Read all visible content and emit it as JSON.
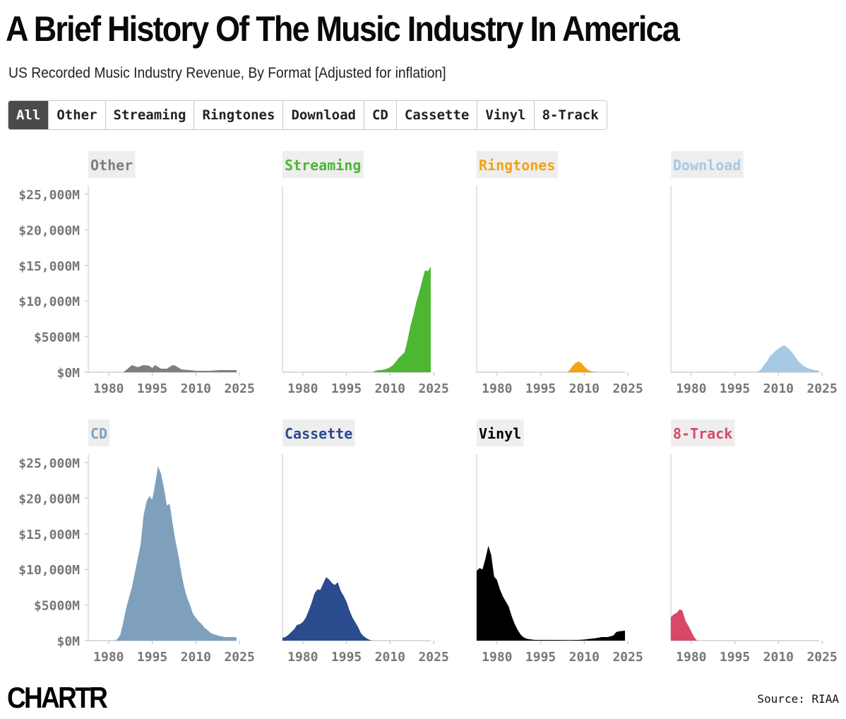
{
  "title": "A Brief History Of The Music Industry In America",
  "subtitle": "US Recorded Music Industry Revenue, By Format [Adjusted for inflation]",
  "tabs": [
    {
      "label": "All",
      "active": true
    },
    {
      "label": "Other",
      "active": false
    },
    {
      "label": "Streaming",
      "active": false
    },
    {
      "label": "Ringtones",
      "active": false
    },
    {
      "label": "Download",
      "active": false
    },
    {
      "label": "CD",
      "active": false
    },
    {
      "label": "Cassette",
      "active": false
    },
    {
      "label": "Vinyl",
      "active": false
    },
    {
      "label": "8-Track",
      "active": false
    }
  ],
  "logo": "CHARTR",
  "source": "Source: RIAA",
  "chart_data": [
    {
      "type": "area",
      "title": "Other",
      "color": "#7f7f7f",
      "title_bg": "#eeeeee",
      "x": [
        1973,
        1980,
        1985,
        1986,
        1988,
        1990,
        1992,
        1994,
        1995,
        1996,
        1998,
        2000,
        2002,
        2003,
        2005,
        2008,
        2010,
        2012,
        2015,
        2018,
        2020,
        2022,
        2024
      ],
      "y": [
        0,
        0,
        0,
        300,
        1000,
        700,
        1000,
        900,
        600,
        1000,
        500,
        500,
        1000,
        900,
        400,
        300,
        200,
        200,
        200,
        300,
        300,
        300,
        300
      ],
      "xticks": [
        "1980",
        "1995",
        "2010",
        "2025"
      ],
      "xlim": [
        1973,
        2024
      ],
      "yticks": [
        "$25,000M",
        "$20,000M",
        "$15,000M",
        "$10,000M",
        "$5000M",
        "$0M"
      ],
      "ylim": [
        0,
        26000
      ]
    },
    {
      "type": "area",
      "title": "Streaming",
      "color": "#4db734",
      "title_bg": "#eeeeee",
      "x": [
        1973,
        2004,
        2005,
        2006,
        2007,
        2008,
        2009,
        2010,
        2011,
        2012,
        2013,
        2014,
        2015,
        2016,
        2017,
        2018,
        2019,
        2020,
        2021,
        2022,
        2023,
        2024
      ],
      "y": [
        0,
        0,
        200,
        300,
        300,
        400,
        500,
        700,
        1000,
        1500,
        2000,
        2400,
        2800,
        4500,
        6500,
        8000,
        9800,
        11200,
        12800,
        14300,
        14200,
        14800
      ],
      "xticks": [
        "1980",
        "1995",
        "2010",
        "2025"
      ],
      "xlim": [
        1973,
        2024
      ],
      "ylim": [
        0,
        26000
      ]
    },
    {
      "type": "area",
      "title": "Ringtones",
      "color": "#f5a30f",
      "title_bg": "#eeeeee",
      "x": [
        1973,
        2004,
        2005,
        2006,
        2007,
        2008,
        2009,
        2010,
        2011,
        2012,
        2013,
        2014,
        2015,
        2024
      ],
      "y": [
        0,
        0,
        300,
        900,
        1300,
        1500,
        1300,
        800,
        400,
        200,
        100,
        50,
        0,
        0
      ],
      "xticks": [
        "1980",
        "1995",
        "2010",
        "2025"
      ],
      "xlim": [
        1973,
        2024
      ],
      "ylim": [
        0,
        26000
      ]
    },
    {
      "type": "area",
      "title": "Download",
      "color": "#a6cae4",
      "title_bg": "#eeeeee",
      "x": [
        1973,
        2002,
        2003,
        2004,
        2005,
        2006,
        2007,
        2008,
        2009,
        2010,
        2011,
        2012,
        2013,
        2014,
        2015,
        2016,
        2017,
        2018,
        2019,
        2020,
        2021,
        2022,
        2023,
        2024
      ],
      "y": [
        0,
        0,
        100,
        400,
        1000,
        1500,
        2200,
        2600,
        3000,
        3300,
        3600,
        3800,
        3500,
        3100,
        2600,
        2000,
        1500,
        1100,
        800,
        600,
        450,
        350,
        280,
        200
      ],
      "xticks": [
        "1980",
        "1995",
        "2010",
        "2025"
      ],
      "xlim": [
        1973,
        2024
      ],
      "ylim": [
        0,
        26000
      ]
    },
    {
      "type": "area",
      "title": "CD",
      "color": "#7fa0bd",
      "title_bg": "#eeeeee",
      "x": [
        1973,
        1982,
        1983,
        1984,
        1985,
        1986,
        1987,
        1988,
        1989,
        1990,
        1991,
        1992,
        1993,
        1994,
        1995,
        1996,
        1997,
        1998,
        1999,
        2000,
        2001,
        2002,
        2003,
        2004,
        2005,
        2006,
        2007,
        2008,
        2009,
        2010,
        2011,
        2012,
        2013,
        2014,
        2015,
        2016,
        2017,
        2018,
        2019,
        2020,
        2021,
        2022,
        2023,
        2024
      ],
      "y": [
        0,
        0,
        200,
        800,
        2500,
        4500,
        6000,
        7500,
        9500,
        11500,
        13500,
        17500,
        19500,
        20300,
        19800,
        22000,
        24500,
        23500,
        21500,
        19000,
        19200,
        16500,
        14000,
        12000,
        9500,
        7500,
        6000,
        5000,
        3800,
        3200,
        2700,
        2300,
        1800,
        1500,
        1100,
        900,
        800,
        650,
        600,
        500,
        500,
        500,
        500,
        450
      ],
      "xticks": [
        "1980",
        "1995",
        "2010",
        "2025"
      ],
      "xlim": [
        1973,
        2024
      ],
      "yticks": [
        "$25,000M",
        "$20,000M",
        "$15,000M",
        "$10,000M",
        "$5000M",
        "$0M"
      ],
      "ylim": [
        0,
        26000
      ]
    },
    {
      "type": "area",
      "title": "Cassette",
      "color": "#2a4b8d",
      "title_bg": "#eeeeee",
      "x": [
        1973,
        1974,
        1975,
        1976,
        1977,
        1978,
        1979,
        1980,
        1981,
        1982,
        1983,
        1984,
        1985,
        1986,
        1987,
        1988,
        1989,
        1990,
        1991,
        1992,
        1993,
        1994,
        1995,
        1996,
        1997,
        1998,
        1999,
        2000,
        2001,
        2002,
        2003,
        2004,
        2024
      ],
      "y": [
        400,
        500,
        800,
        1200,
        1600,
        2200,
        2300,
        2600,
        3200,
        4200,
        5300,
        6600,
        7200,
        7100,
        8000,
        8900,
        8600,
        8100,
        7800,
        8200,
        7000,
        6300,
        5500,
        4300,
        3300,
        2600,
        1900,
        1000,
        600,
        300,
        100,
        0,
        0
      ],
      "xticks": [
        "1980",
        "1995",
        "2010",
        "2025"
      ],
      "xlim": [
        1973,
        2024
      ],
      "ylim": [
        0,
        26000
      ]
    },
    {
      "type": "area",
      "title": "Vinyl",
      "color": "#000000",
      "title_bg": "#eeeeee",
      "x": [
        1973,
        1974,
        1975,
        1976,
        1977,
        1978,
        1979,
        1980,
        1981,
        1982,
        1983,
        1984,
        1985,
        1986,
        1987,
        1988,
        1989,
        1990,
        1991,
        1992,
        1993,
        2000,
        2005,
        2008,
        2010,
        2012,
        2014,
        2016,
        2018,
        2020,
        2021,
        2022,
        2023,
        2024
      ],
      "y": [
        9800,
        10200,
        10000,
        11500,
        13300,
        12000,
        9000,
        8500,
        7200,
        6200,
        5500,
        4800,
        3500,
        2400,
        1600,
        900,
        500,
        300,
        200,
        150,
        100,
        100,
        80,
        100,
        150,
        250,
        350,
        500,
        500,
        700,
        1200,
        1300,
        1350,
        1400
      ],
      "xticks": [
        "1980",
        "1995",
        "2010",
        "2025"
      ],
      "xlim": [
        1973,
        2024
      ],
      "ylim": [
        0,
        26000
      ]
    },
    {
      "type": "area",
      "title": "8-Track",
      "color": "#d94869",
      "title_bg": "#eeeeee",
      "x": [
        1973,
        1974,
        1975,
        1976,
        1977,
        1978,
        1979,
        1980,
        1981,
        1982,
        2024
      ],
      "y": [
        3300,
        3700,
        3900,
        4400,
        4200,
        2800,
        2100,
        1300,
        500,
        0,
        0
      ],
      "xticks": [
        "1980",
        "1995",
        "2010",
        "2025"
      ],
      "xlim": [
        1973,
        2024
      ],
      "ylim": [
        0,
        26000
      ]
    }
  ]
}
